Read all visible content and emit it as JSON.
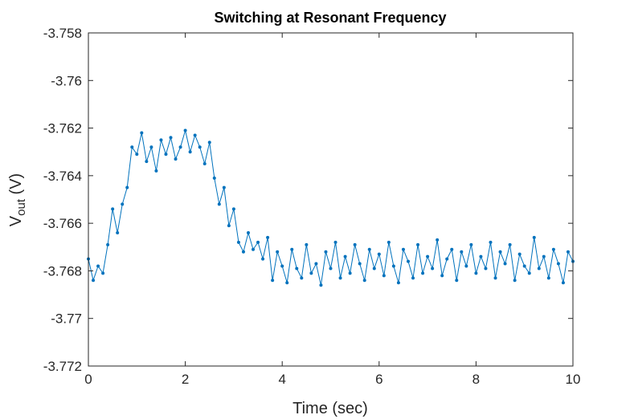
{
  "chart_data": {
    "type": "line",
    "title": "Switching at Resonant Frequency",
    "xlabel": "Time (sec)",
    "ylabel": {
      "main": "V",
      "subscript": "out",
      "suffix": " (V)"
    },
    "xlim": [
      0,
      10
    ],
    "ylim": [
      -3.772,
      -3.758
    ],
    "xticks": [
      0,
      2,
      4,
      6,
      8,
      10
    ],
    "xtick_labels": [
      "0",
      "2",
      "4",
      "6",
      "8",
      "10"
    ],
    "yticks": [
      -3.772,
      -3.77,
      -3.768,
      -3.766,
      -3.764,
      -3.762,
      -3.76,
      -3.758
    ],
    "ytick_labels": [
      "-3.772",
      "-3.77",
      "-3.768",
      "-3.766",
      "-3.764",
      "-3.762",
      "-3.76",
      "-3.758"
    ],
    "grid": false,
    "line_color": "#0072BD",
    "marker": "dot",
    "series": [
      {
        "x": [
          0.0,
          0.1,
          0.2,
          0.3,
          0.4,
          0.5,
          0.6,
          0.7,
          0.8,
          0.9,
          1.0,
          1.1,
          1.2,
          1.3,
          1.4,
          1.5,
          1.6,
          1.7,
          1.8,
          1.9,
          2.0,
          2.1,
          2.2,
          2.3,
          2.4,
          2.5,
          2.6,
          2.7,
          2.8,
          2.9,
          3.0,
          3.1,
          3.2,
          3.3,
          3.4,
          3.5,
          3.6,
          3.7,
          3.8,
          3.9,
          4.0,
          4.1,
          4.2,
          4.3,
          4.4,
          4.5,
          4.6,
          4.7,
          4.8,
          4.9,
          5.0,
          5.1,
          5.2,
          5.3,
          5.4,
          5.5,
          5.6,
          5.7,
          5.8,
          5.9,
          6.0,
          6.1,
          6.2,
          6.3,
          6.4,
          6.5,
          6.6,
          6.7,
          6.8,
          6.9,
          7.0,
          7.1,
          7.2,
          7.3,
          7.4,
          7.5,
          7.6,
          7.7,
          7.8,
          7.9,
          8.0,
          8.1,
          8.2,
          8.3,
          8.4,
          8.5,
          8.6,
          8.7,
          8.8,
          8.9,
          9.0,
          9.1,
          9.2,
          9.3,
          9.4,
          9.5,
          9.6,
          9.7,
          9.8,
          9.9,
          10.0
        ],
        "values": [
          -3.7675,
          -3.7684,
          -3.7678,
          -3.7681,
          -3.7669,
          -3.7654,
          -3.7664,
          -3.7652,
          -3.7645,
          -3.7628,
          -3.7631,
          -3.7622,
          -3.7634,
          -3.7628,
          -3.7638,
          -3.7625,
          -3.7631,
          -3.7624,
          -3.7633,
          -3.7628,
          -3.7621,
          -3.763,
          -3.7623,
          -3.7628,
          -3.7635,
          -3.7626,
          -3.7641,
          -3.7652,
          -3.7645,
          -3.7661,
          -3.7654,
          -3.7668,
          -3.7672,
          -3.7664,
          -3.7671,
          -3.7668,
          -3.7675,
          -3.7666,
          -3.7684,
          -3.7672,
          -3.7678,
          -3.7685,
          -3.7671,
          -3.7679,
          -3.7683,
          -3.7669,
          -3.7681,
          -3.7677,
          -3.7686,
          -3.7672,
          -3.7679,
          -3.7668,
          -3.7683,
          -3.7674,
          -3.7681,
          -3.7669,
          -3.7677,
          -3.7684,
          -3.7671,
          -3.7679,
          -3.7673,
          -3.7682,
          -3.7668,
          -3.7678,
          -3.7685,
          -3.7671,
          -3.7676,
          -3.7683,
          -3.7669,
          -3.7681,
          -3.7674,
          -3.7679,
          -3.7667,
          -3.7682,
          -3.7675,
          -3.7671,
          -3.7684,
          -3.7672,
          -3.7678,
          -3.7669,
          -3.7681,
          -3.7674,
          -3.7679,
          -3.7668,
          -3.7683,
          -3.7672,
          -3.7677,
          -3.7669,
          -3.7684,
          -3.7673,
          -3.7678,
          -3.7681,
          -3.7666,
          -3.7679,
          -3.7674,
          -3.7683,
          -3.7671,
          -3.7677,
          -3.7685,
          -3.7672,
          -3.7676
        ]
      }
    ]
  }
}
